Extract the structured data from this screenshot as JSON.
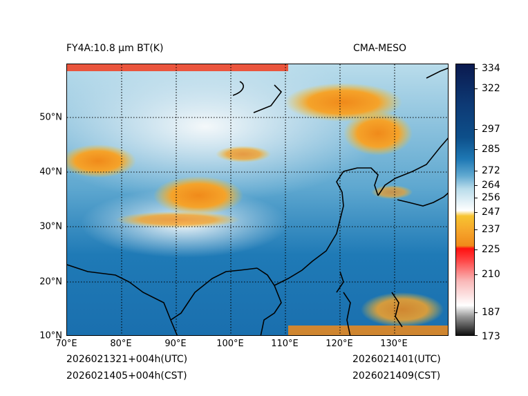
{
  "title_left": "FY4A:10.8 µm BT(K)",
  "title_right": "CMA-MESO",
  "footer": {
    "left_utc": "2026021321+004h(UTC)",
    "left_cst": "2026021405+004h(CST)",
    "right_utc": "2026021401(UTC)",
    "right_cst": "2026021409(CST)"
  },
  "map": {
    "lon_range": [
      70,
      140
    ],
    "lat_range": [
      10,
      60
    ],
    "lat_ticks": [
      {
        "value": 50,
        "label": "50°N"
      },
      {
        "value": 40,
        "label": "40°N"
      },
      {
        "value": 30,
        "label": "30°N"
      },
      {
        "value": 20,
        "label": "20°N"
      },
      {
        "value": 10,
        "label": "10°N"
      }
    ],
    "lon_ticks": [
      {
        "value": 70,
        "label": "70°E"
      },
      {
        "value": 80,
        "label": "80°E"
      },
      {
        "value": 90,
        "label": "90°E"
      },
      {
        "value": 100,
        "label": "100°E"
      },
      {
        "value": 110,
        "label": "110°E"
      },
      {
        "value": 120,
        "label": "120°E"
      },
      {
        "value": 130,
        "label": "130°E"
      }
    ]
  },
  "colorbar": {
    "range": [
      173,
      336
    ],
    "labels": [
      334,
      322,
      297,
      285,
      272,
      264,
      256,
      247,
      237,
      225,
      210,
      187,
      173
    ],
    "colors": {
      "navy": "#0b1a4f",
      "deep_blue": "#0d4f8a",
      "ocean_blue": "#1e78b4",
      "light_blue": "#8cc4e0",
      "pale": "#e9f2f7",
      "yellow": "#f7c431",
      "orange": "#f08a1a",
      "red": "#ff1010",
      "pink": "#f9b8b8",
      "grey": "#9a9a9a",
      "black": "#111111"
    }
  }
}
